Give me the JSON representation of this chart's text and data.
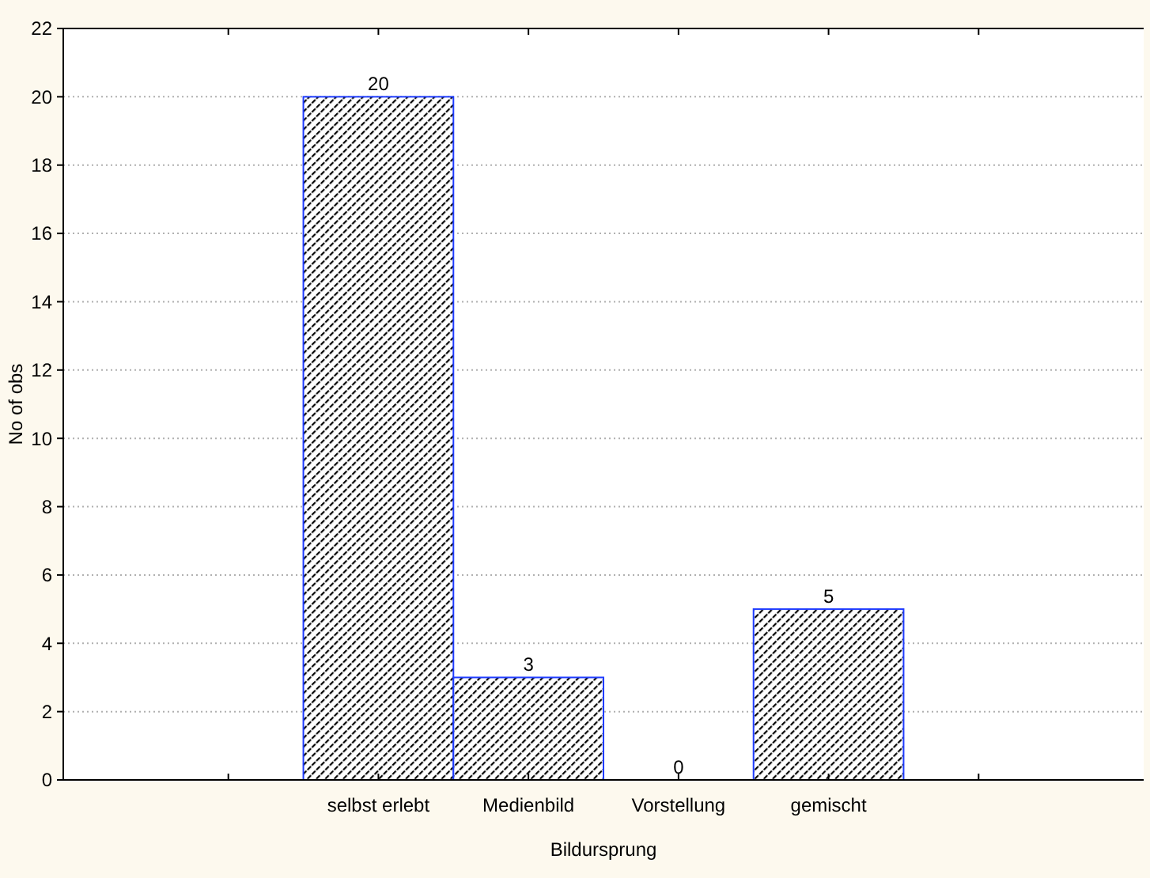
{
  "chart_data": {
    "type": "bar",
    "xlabel": "Bildursprung",
    "ylabel": "No of obs",
    "categories": [
      null,
      "selbst erlebt",
      "Medienbild",
      "Vorstellung",
      "gemischt",
      null
    ],
    "values": [
      null,
      20,
      3,
      0,
      5,
      null
    ],
    "color": "#1f3cff",
    "ylim": [
      0,
      22
    ],
    "yticks": [
      0,
      2,
      4,
      6,
      8,
      10,
      12,
      14,
      16,
      18,
      20,
      22
    ],
    "grid": "y",
    "data_labels": true
  }
}
